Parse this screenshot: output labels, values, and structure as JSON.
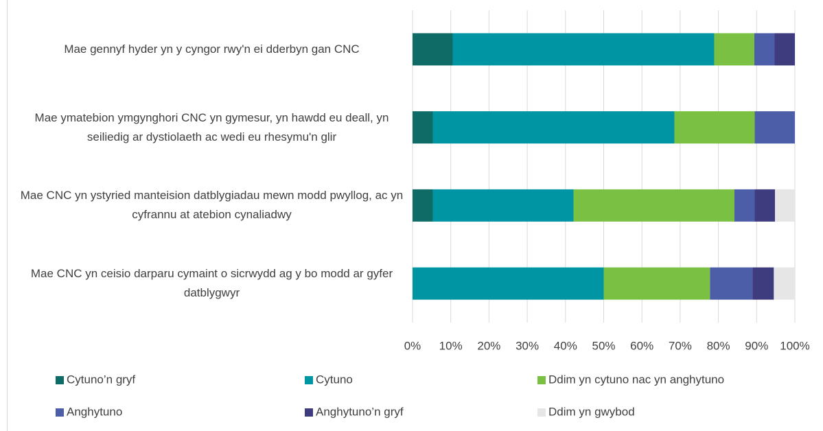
{
  "chart_data": {
    "type": "stacked-barh",
    "categories": [
      "Mae gennyf hyder yn y cyngor rwy'n ei dderbyn gan CNC",
      "Mae ymatebion ymgynghori CNC yn gymesur, yn hawdd eu deall, yn seiliedig ar dystiolaeth ac wedi eu rhesymu'n glir",
      "Mae CNC yn ystyried manteision datblygiadau mewn modd pwyllog, ac yn cyfrannu at atebion cynaliadwy",
      "Mae CNC yn ceisio darparu cymaint o sicrwydd ag y bo modd ar gyfer datblygwyr"
    ],
    "series": [
      {
        "name": "Cytuno’n gryf",
        "color": "#0e6b66",
        "values": [
          10.5,
          5.3,
          5.3,
          0
        ]
      },
      {
        "name": "Cytuno",
        "color": "#0095a3",
        "values": [
          68.4,
          63.2,
          36.8,
          50
        ]
      },
      {
        "name": "Ddim yn cytuno nac yn anghytuno",
        "color": "#7ac143",
        "values": [
          10.5,
          21.0,
          42.1,
          27.8
        ]
      },
      {
        "name": "Anghytuno",
        "color": "#4d5ea8",
        "values": [
          5.3,
          10.5,
          5.3,
          11.1
        ]
      },
      {
        "name": "Anghytuno’n gryf",
        "color": "#3e3b7f",
        "values": [
          5.3,
          0,
          5.3,
          5.6
        ]
      },
      {
        "name": "Ddim yn gwybod",
        "color": "#e6e6e6",
        "values": [
          0,
          0,
          5.2,
          5.5
        ]
      }
    ],
    "xlim": [
      0,
      100
    ],
    "xticks": [
      {
        "value": 0,
        "label": "0%"
      },
      {
        "value": 10,
        "label": "10%"
      },
      {
        "value": 20,
        "label": "20%"
      },
      {
        "value": 30,
        "label": "30%"
      },
      {
        "value": 40,
        "label": "40%"
      },
      {
        "value": 50,
        "label": "50%"
      },
      {
        "value": 60,
        "label": "60%"
      },
      {
        "value": 70,
        "label": "70%"
      },
      {
        "value": 80,
        "label": "80%"
      },
      {
        "value": 90,
        "label": "90%"
      },
      {
        "value": 100,
        "label": "100%"
      }
    ],
    "grid": true,
    "legend": "bottom"
  }
}
